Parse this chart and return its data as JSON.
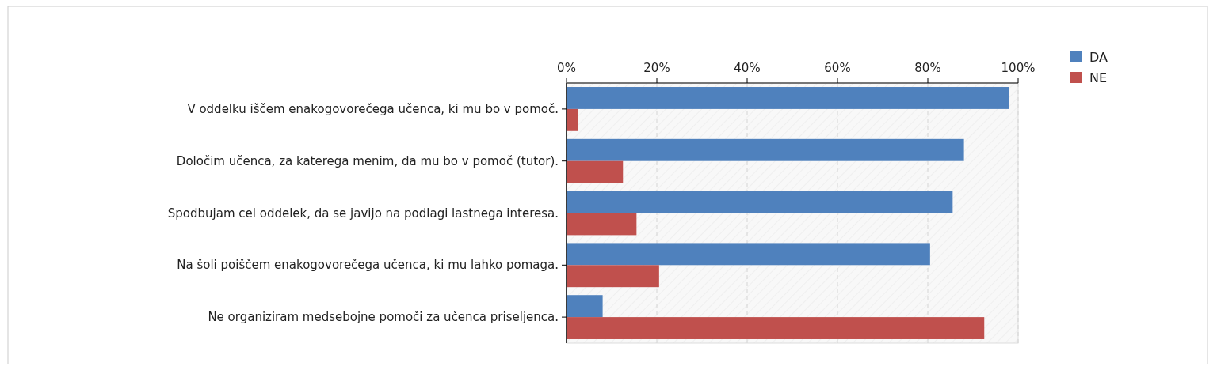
{
  "chart_data": {
    "type": "bar",
    "orientation": "horizontal",
    "categories": [
      "V oddelku iščem enakogovorečega učenca, ki mu bo v pomoč.",
      "Določim učenca, za katerega menim, da mu bo v pomoč (tutor).",
      "Spodbujam cel oddelek, da se javijo na podlagi lastnega interesa.",
      "Na šoli poiščem enakogovorečega učenca, ki mu lahko pomaga.",
      "Ne organiziram medsebojne pomoči za učenca priseljenca."
    ],
    "series": [
      {
        "name": "DA",
        "color": "#4f81bd",
        "values": [
          98,
          88,
          85.5,
          80.5,
          8
        ]
      },
      {
        "name": "NE",
        "color": "#c0504d",
        "values": [
          2.5,
          12.5,
          15.5,
          20.5,
          92.5
        ]
      }
    ],
    "xlim": [
      0,
      100
    ],
    "xticks": [
      {
        "value": 0,
        "label": "0%"
      },
      {
        "value": 20,
        "label": "20%"
      },
      {
        "value": 40,
        "label": "40%"
      },
      {
        "value": 60,
        "label": "60%"
      },
      {
        "value": 80,
        "label": "80%"
      },
      {
        "value": 100,
        "label": "100%"
      }
    ],
    "grid": "x",
    "legend": "right"
  }
}
